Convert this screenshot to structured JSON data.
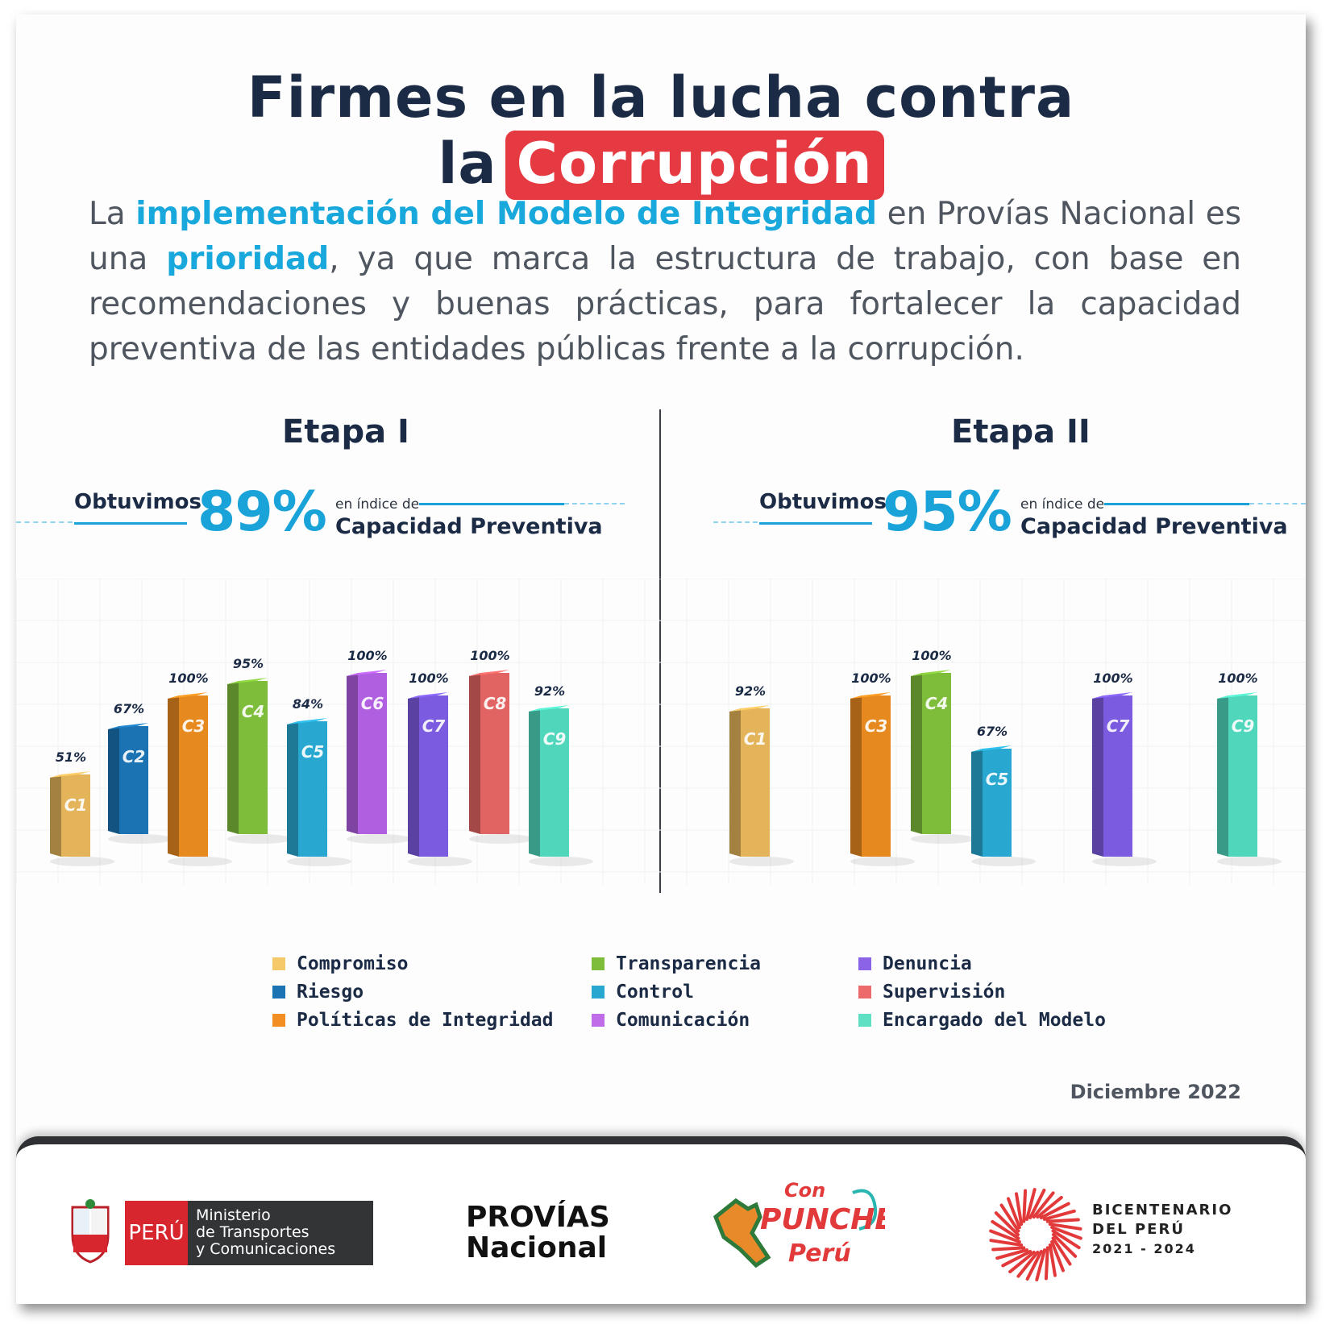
{
  "header": {
    "title_main": "Firmes en la lucha contra la",
    "title_highlight": "Corrupción"
  },
  "intro": {
    "p1": "La ",
    "p2": "implementación del Modelo de Integridad",
    "p3": " en Provías Nacional es una ",
    "p4": "prioridad",
    "p5": ", ya que marca la estructura de trabajo, con base en recomendaciones y buenas prácticas, para fortalecer la capacidad preventiva de las entidades públicas frente a la corrupción."
  },
  "stage1": {
    "title": "Etapa I",
    "obtained": "Obtuvimos",
    "percent": "89%",
    "index_small": "en índice de",
    "index_label": "Capacidad Preventiva"
  },
  "stage2": {
    "title": "Etapa II",
    "obtained": "Obtuvimos",
    "percent": "95%",
    "index_small": "en índice de",
    "index_label": "Capacidad Preventiva"
  },
  "chart_data": [
    {
      "type": "bar",
      "title": "Etapa I",
      "categories": [
        "C1",
        "C2",
        "C3",
        "C4",
        "C5",
        "C6",
        "C7",
        "C8",
        "C9"
      ],
      "values": [
        51,
        67,
        100,
        95,
        84,
        100,
        100,
        100,
        92
      ],
      "labels": [
        "51%",
        "67%",
        "100%",
        "95%",
        "84%",
        "100%",
        "100%",
        "100%",
        "92%"
      ],
      "colors": [
        "#e3b45a",
        "#1b73b3",
        "#e68a20",
        "#7ebd3a",
        "#28a8d1",
        "#b05fe0",
        "#7b5be0",
        "#e26462",
        "#4fd6bb"
      ]
    },
    {
      "type": "bar",
      "title": "Etapa II",
      "categories": [
        "C1",
        "C3",
        "C4",
        "C5",
        "C7",
        "C9"
      ],
      "values": [
        92,
        100,
        100,
        67,
        100,
        100
      ],
      "labels": [
        "92%",
        "100%",
        "100%",
        "67%",
        "100%",
        "100%"
      ],
      "colors": [
        "#e3b45a",
        "#e68a20",
        "#7ebd3a",
        "#28a8d1",
        "#7b5be0",
        "#4fd6bb"
      ]
    }
  ],
  "legend": [
    {
      "label": "Compromiso",
      "color": "#f5c86a"
    },
    {
      "label": "Riesgo",
      "color": "#1b73b3"
    },
    {
      "label": "Políticas de Integridad",
      "color": "#f28f22"
    },
    {
      "label": "Transparencia",
      "color": "#7ebd3a"
    },
    {
      "label": "Control",
      "color": "#28a8d1"
    },
    {
      "label": "Comunicación",
      "color": "#c06be8"
    },
    {
      "label": "Denuncia",
      "color": "#8a63e6"
    },
    {
      "label": "Supervisión",
      "color": "#ec6a6a"
    },
    {
      "label": "Encargado del Modelo",
      "color": "#5fe0c4"
    }
  ],
  "date": "Diciembre 2022",
  "footer": {
    "peru": "PERÚ",
    "mtc_line1": "Ministerio",
    "mtc_line2": "de Transportes",
    "mtc_line3": "y Comunicaciones",
    "provias1": "PROVÍAS",
    "provias2": "Nacional",
    "punche1": "Con",
    "punche2": "PUNCHE",
    "punche3": "Perú",
    "bicent1": "BICENTENARIO",
    "bicent2": "DEL PERÚ",
    "bicent3": "2021 - 2024"
  }
}
